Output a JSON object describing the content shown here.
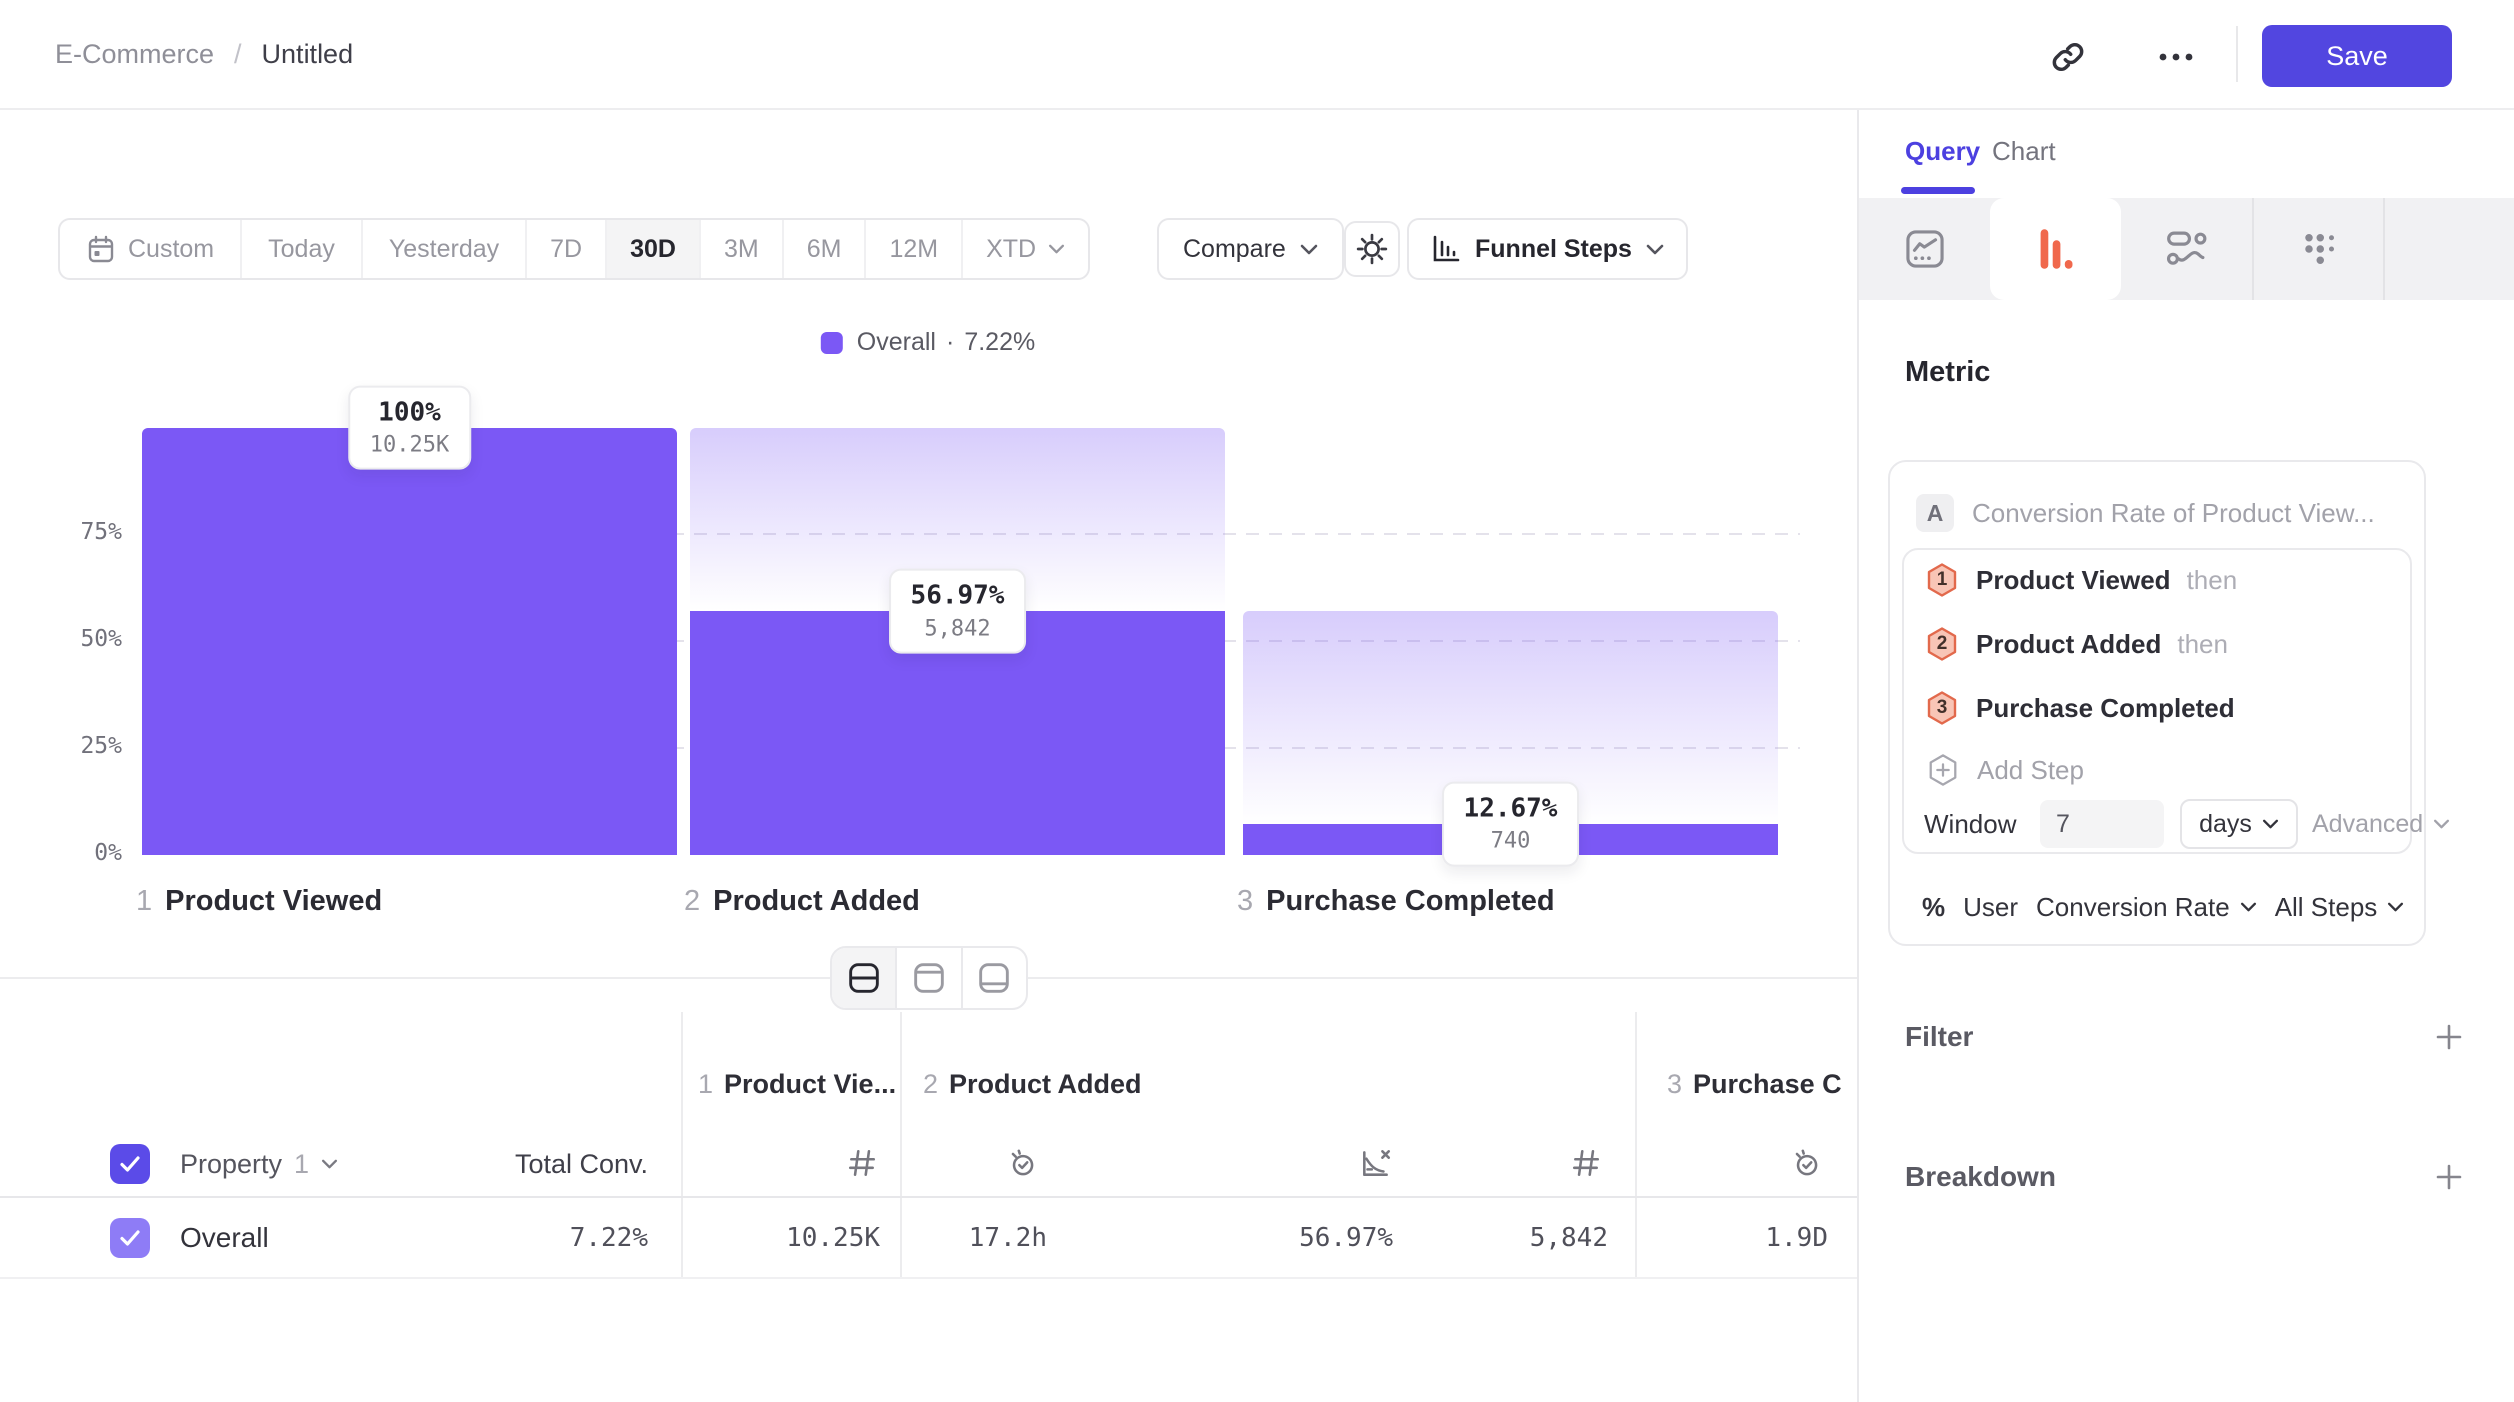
{
  "header": {
    "breadcrumb": {
      "parent": "E-Commerce",
      "separator": "/",
      "current": "Untitled"
    },
    "save_label": "Save",
    "accent_color": "#5246E0"
  },
  "toolbar": {
    "date_ranges": {
      "items": [
        "Custom",
        "Today",
        "Yesterday",
        "7D",
        "30D",
        "3M",
        "6M",
        "12M",
        "XTD"
      ],
      "active": "30D"
    },
    "compare_label": "Compare",
    "chart_type_label": "Funnel Steps"
  },
  "legend": {
    "series": "Overall",
    "separator": "·",
    "value": "7.22%",
    "swatch_color": "#7B58F5"
  },
  "chart_data": {
    "type": "funnel",
    "series": [
      {
        "name": "Overall",
        "overall_conversion_pct": 7.22
      }
    ],
    "bar_color": "#7B58F5",
    "legend_position": "top-center",
    "y_axis": {
      "range": [
        0,
        100
      ],
      "gridlines": "dashed",
      "ticks": [
        {
          "label": "75%",
          "pct": 75
        },
        {
          "label": "50%",
          "pct": 50
        },
        {
          "label": "25%",
          "pct": 25
        },
        {
          "label": "0%",
          "pct": 0
        }
      ]
    },
    "steps": [
      {
        "index": "1",
        "name": "Product Viewed",
        "label_pct": "100%",
        "count_label": "10.25K",
        "count_value": 10250,
        "bar_height_pct": 100,
        "ghost_top_pct": null
      },
      {
        "index": "2",
        "name": "Product Added",
        "label_pct": "56.97%",
        "count_label": "5,842",
        "count_value": 5842,
        "bar_height_pct": 56.97,
        "ghost_top_pct": 100
      },
      {
        "index": "3",
        "name": "Purchase Completed",
        "label_pct": "12.67%",
        "count_label": "740",
        "count_value": 740,
        "bar_height_pct": 7.22,
        "ghost_top_pct": 56.97
      }
    ]
  },
  "view_toggle": {
    "options": [
      "split-view",
      "top-panel-view",
      "bottom-panel-view"
    ],
    "active": "split-view"
  },
  "table": {
    "property_header": {
      "label": "Property",
      "number": "1"
    },
    "total_conv_header": "Total Conv.",
    "groups": [
      {
        "title_index": "1",
        "title": "Product Vie..."
      },
      {
        "title_index": "2",
        "title": "Product Added"
      },
      {
        "title_index": "3",
        "title": "Purchase C"
      }
    ],
    "row": {
      "label": "Overall",
      "total_conv": "7.22%",
      "values": [
        "10.25K",
        "17.2h",
        "56.97%",
        "5,842",
        "1.9D"
      ],
      "checked": true
    }
  },
  "panel": {
    "tabs": {
      "active": "Query",
      "idle": "Chart"
    },
    "chart_types": {
      "active": "funnel-bars",
      "active_color": "#F0684C",
      "options": [
        "line-chart",
        "funnel-bars",
        "flow",
        "grid-dots"
      ]
    },
    "metric": {
      "heading": "Metric",
      "badge": "A",
      "title": "Conversion Rate of Product View...",
      "steps": [
        {
          "num": "1",
          "name": "Product Viewed",
          "suffix": "then"
        },
        {
          "num": "2",
          "name": "Product Added",
          "suffix": "then"
        },
        {
          "num": "3",
          "name": "Purchase Completed",
          "suffix": ""
        }
      ],
      "add_step_label": "Add Step",
      "window": {
        "label": "Window",
        "value": "7",
        "unit": "days",
        "advanced_label": "Advanced"
      },
      "footer": {
        "prefix": "%",
        "entity": "User",
        "measure": "Conversion Rate",
        "scope": "All Steps"
      }
    },
    "sections": [
      {
        "label": "Filter"
      },
      {
        "label": "Breakdown"
      }
    ]
  }
}
